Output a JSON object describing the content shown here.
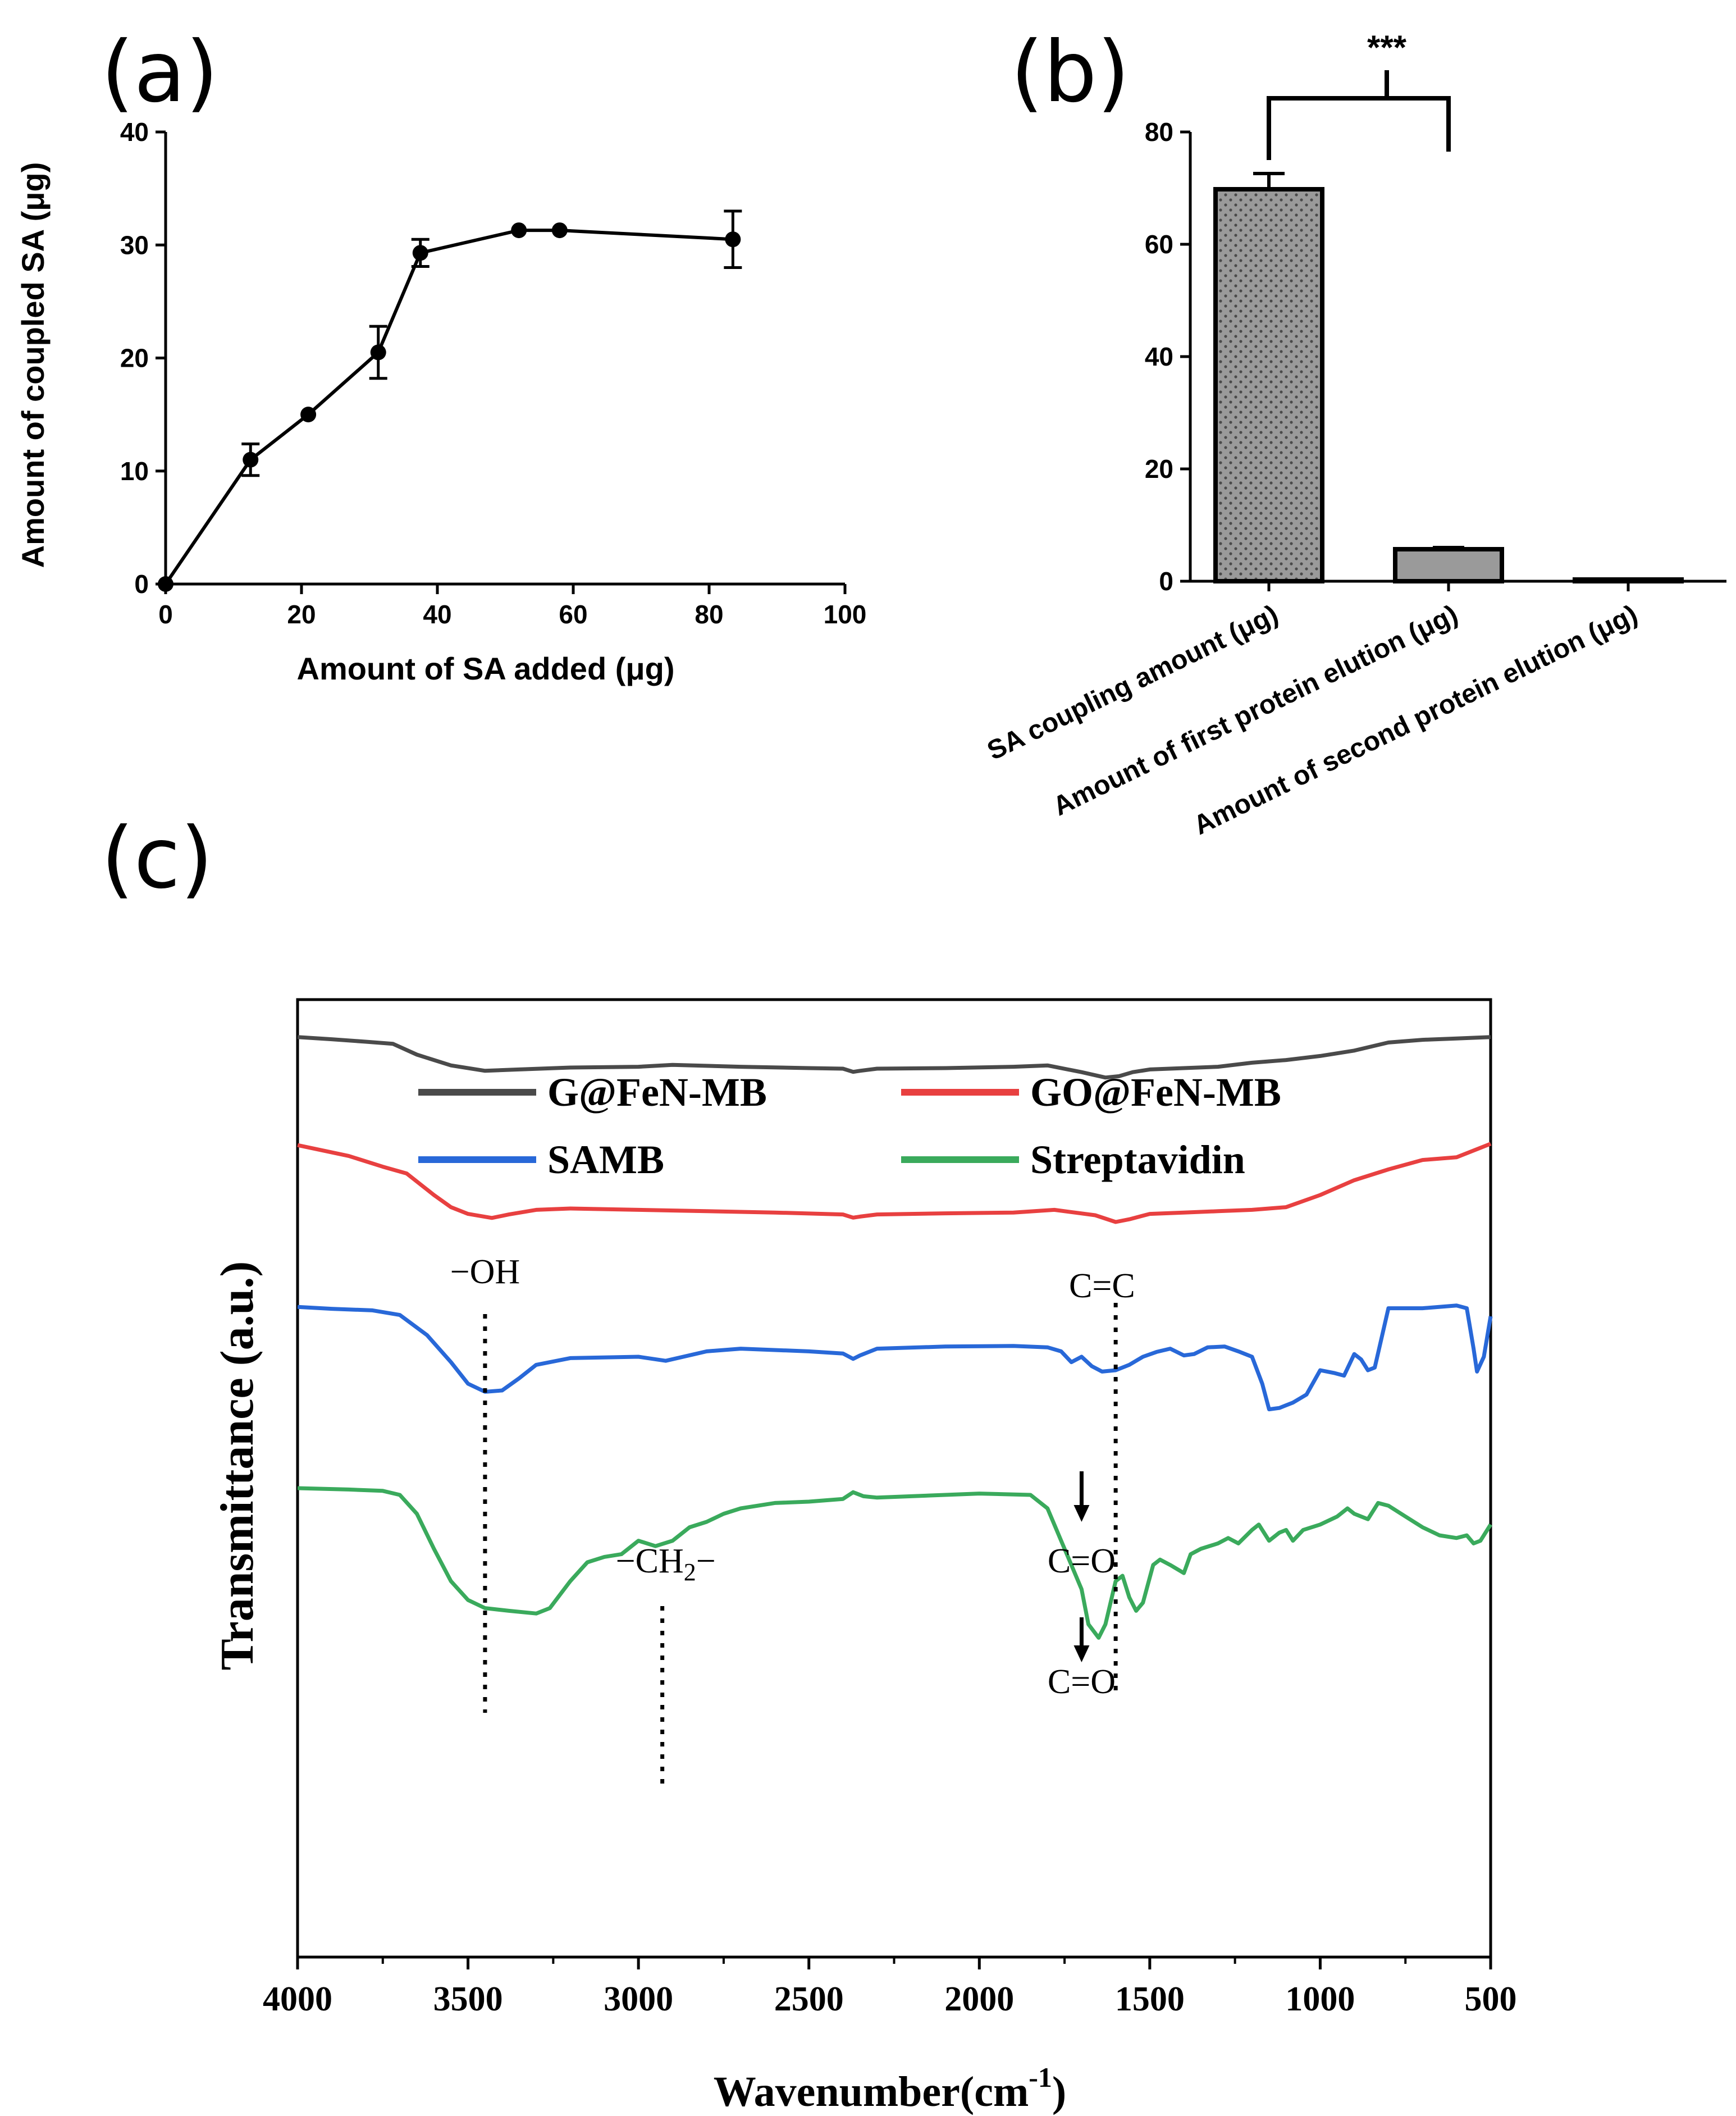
{
  "panels": {
    "a": "(a)",
    "b": "(b)",
    "c": "(c)"
  },
  "chart_data": [
    {
      "id": "a",
      "type": "line",
      "xlabel": "Amount of SA added (μg)",
      "ylabel": "Amount of coupled SA (μg)",
      "xlim": [
        0,
        100
      ],
      "ylim": [
        0,
        40
      ],
      "xticks": [
        "0",
        "20",
        "40",
        "60",
        "80",
        "100"
      ],
      "yticks": [
        "0",
        "10",
        "20",
        "30",
        "40"
      ],
      "x": [
        0,
        12.5,
        21,
        31.3,
        37.5,
        52,
        58,
        83.5
      ],
      "y": [
        0,
        11,
        15,
        20.5,
        29.3,
        31.3,
        31.3,
        30.5
      ],
      "err": [
        0,
        1.4,
        0,
        2.3,
        1.2,
        0,
        0,
        2.5
      ],
      "color": "#000000"
    },
    {
      "id": "b",
      "type": "bar",
      "categories": [
        "SA coupling amount (μg)",
        "Amount of first protein elution (μg)",
        "Amount of second protein elution (μg)"
      ],
      "values": [
        69.8,
        5.7,
        0.3
      ],
      "err": [
        2.8,
        0.3,
        0
      ],
      "ylim": [
        0,
        80
      ],
      "yticks": [
        "0",
        "20",
        "40",
        "60",
        "80"
      ],
      "significance": {
        "label": "***",
        "between": [
          0,
          1
        ]
      },
      "bar_color": "#9a9a9a"
    },
    {
      "id": "c",
      "type": "line",
      "xlabel": "Wavenumber(cm",
      "xlabel_sup": "-1",
      "xlabel_end": ")",
      "ylabel": "Transmittance (a.u.)",
      "xlim": [
        4000,
        500
      ],
      "xticks": [
        "4000",
        "3500",
        "3000",
        "2500",
        "2000",
        "1500",
        "1000",
        "500"
      ],
      "legend": {
        "position": "top"
      },
      "series": [
        {
          "name": "G@FeN-MB",
          "color": "#4a4a4a",
          "points": [
            [
              4000,
              0.965
            ],
            [
              3900,
              0.957
            ],
            [
              3800,
              0.948
            ],
            [
              3720,
              0.94
            ],
            [
              3650,
              0.9
            ],
            [
              3550,
              0.86
            ],
            [
              3450,
              0.84
            ],
            [
              3350,
              0.845
            ],
            [
              3200,
              0.852
            ],
            [
              3000,
              0.855
            ],
            [
              2900,
              0.862
            ],
            [
              2700,
              0.855
            ],
            [
              2500,
              0.85
            ],
            [
              2400,
              0.848
            ],
            [
              2370,
              0.836
            ],
            [
              2350,
              0.84
            ],
            [
              2300,
              0.848
            ],
            [
              2100,
              0.85
            ],
            [
              1900,
              0.855
            ],
            [
              1800,
              0.86
            ],
            [
              1700,
              0.835
            ],
            [
              1630,
              0.815
            ],
            [
              1590,
              0.82
            ],
            [
              1550,
              0.835
            ],
            [
              1500,
              0.845
            ],
            [
              1400,
              0.85
            ],
            [
              1300,
              0.855
            ],
            [
              1200,
              0.87
            ],
            [
              1100,
              0.88
            ],
            [
              1000,
              0.895
            ],
            [
              900,
              0.915
            ],
            [
              800,
              0.945
            ],
            [
              700,
              0.955
            ],
            [
              600,
              0.96
            ],
            [
              500,
              0.965
            ]
          ]
        },
        {
          "name": "GO@FeN-MB",
          "color": "#e84040",
          "points": [
            [
              4000,
              0.835
            ],
            [
              3850,
              0.795
            ],
            [
              3750,
              0.755
            ],
            [
              3680,
              0.73
            ],
            [
              3600,
              0.65
            ],
            [
              3550,
              0.605
            ],
            [
              3500,
              0.58
            ],
            [
              3430,
              0.565
            ],
            [
              3380,
              0.578
            ],
            [
              3300,
              0.595
            ],
            [
              3200,
              0.6
            ],
            [
              3000,
              0.595
            ],
            [
              2800,
              0.59
            ],
            [
              2600,
              0.585
            ],
            [
              2400,
              0.578
            ],
            [
              2370,
              0.566
            ],
            [
              2350,
              0.57
            ],
            [
              2300,
              0.578
            ],
            [
              2100,
              0.582
            ],
            [
              1900,
              0.585
            ],
            [
              1780,
              0.595
            ],
            [
              1720,
              0.585
            ],
            [
              1660,
              0.575
            ],
            [
              1600,
              0.55
            ],
            [
              1560,
              0.56
            ],
            [
              1500,
              0.58
            ],
            [
              1400,
              0.585
            ],
            [
              1300,
              0.59
            ],
            [
              1200,
              0.595
            ],
            [
              1100,
              0.605
            ],
            [
              1000,
              0.65
            ],
            [
              900,
              0.705
            ],
            [
              800,
              0.745
            ],
            [
              700,
              0.78
            ],
            [
              600,
              0.79
            ],
            [
              500,
              0.84
            ]
          ]
        },
        {
          "name": "SAMB",
          "color": "#2868d8",
          "points": [
            [
              4000,
              0.485
            ],
            [
              3900,
              0.478
            ],
            [
              3780,
              0.472
            ],
            [
              3700,
              0.455
            ],
            [
              3620,
              0.38
            ],
            [
              3550,
              0.28
            ],
            [
              3500,
              0.2
            ],
            [
              3450,
              0.17
            ],
            [
              3400,
              0.175
            ],
            [
              3350,
              0.22
            ],
            [
              3300,
              0.27
            ],
            [
              3200,
              0.295
            ],
            [
              3000,
              0.3
            ],
            [
              2920,
              0.285
            ],
            [
              2800,
              0.32
            ],
            [
              2700,
              0.33
            ],
            [
              2500,
              0.32
            ],
            [
              2400,
              0.312
            ],
            [
              2370,
              0.292
            ],
            [
              2350,
              0.305
            ],
            [
              2300,
              0.33
            ],
            [
              2100,
              0.338
            ],
            [
              1900,
              0.34
            ],
            [
              1800,
              0.335
            ],
            [
              1760,
              0.32
            ],
            [
              1730,
              0.28
            ],
            [
              1700,
              0.3
            ],
            [
              1670,
              0.265
            ],
            [
              1640,
              0.245
            ],
            [
              1600,
              0.25
            ],
            [
              1560,
              0.27
            ],
            [
              1520,
              0.3
            ],
            [
              1480,
              0.318
            ],
            [
              1440,
              0.33
            ],
            [
              1400,
              0.305
            ],
            [
              1370,
              0.31
            ],
            [
              1330,
              0.335
            ],
            [
              1280,
              0.338
            ],
            [
              1240,
              0.32
            ],
            [
              1200,
              0.3
            ],
            [
              1170,
              0.2
            ],
            [
              1150,
              0.105
            ],
            [
              1120,
              0.11
            ],
            [
              1080,
              0.13
            ],
            [
              1040,
              0.16
            ],
            [
              1000,
              0.25
            ],
            [
              960,
              0.24
            ],
            [
              930,
              0.23
            ],
            [
              900,
              0.31
            ],
            [
              880,
              0.29
            ],
            [
              860,
              0.25
            ],
            [
              840,
              0.26
            ],
            [
              800,
              0.48
            ],
            [
              700,
              0.48
            ],
            [
              600,
              0.49
            ],
            [
              570,
              0.48
            ],
            [
              550,
              0.33
            ],
            [
              540,
              0.245
            ],
            [
              520,
              0.3
            ],
            [
              500,
              0.45
            ]
          ]
        },
        {
          "name": "Streptavidin",
          "color": "#3aaa5c",
          "points": [
            [
              4000,
              0.125
            ],
            [
              3850,
              0.12
            ],
            [
              3750,
              0.115
            ],
            [
              3700,
              0.1
            ],
            [
              3650,
              0.03
            ],
            [
              3600,
              -0.1
            ],
            [
              3550,
              -0.22
            ],
            [
              3500,
              -0.29
            ],
            [
              3450,
              -0.32
            ],
            [
              3380,
              -0.33
            ],
            [
              3300,
              -0.34
            ],
            [
              3260,
              -0.32
            ],
            [
              3200,
              -0.22
            ],
            [
              3150,
              -0.15
            ],
            [
              3100,
              -0.13
            ],
            [
              3050,
              -0.12
            ],
            [
              3000,
              -0.07
            ],
            [
              2950,
              -0.09
            ],
            [
              2900,
              -0.07
            ],
            [
              2850,
              -0.02
            ],
            [
              2800,
              0
            ],
            [
              2750,
              0.03
            ],
            [
              2700,
              0.05
            ],
            [
              2600,
              0.07
            ],
            [
              2500,
              0.075
            ],
            [
              2400,
              0.085
            ],
            [
              2370,
              0.11
            ],
            [
              2340,
              0.095
            ],
            [
              2300,
              0.09
            ],
            [
              2200,
              0.095
            ],
            [
              2000,
              0.105
            ],
            [
              1850,
              0.1
            ],
            [
              1800,
              0.05
            ],
            [
              1750,
              -0.1
            ],
            [
              1700,
              -0.25
            ],
            [
              1680,
              -0.38
            ],
            [
              1650,
              -0.43
            ],
            [
              1630,
              -0.38
            ],
            [
              1600,
              -0.22
            ],
            [
              1580,
              -0.2
            ],
            [
              1560,
              -0.28
            ],
            [
              1540,
              -0.33
            ],
            [
              1520,
              -0.3
            ],
            [
              1490,
              -0.16
            ],
            [
              1470,
              -0.14
            ],
            [
              1440,
              -0.16
            ],
            [
              1400,
              -0.19
            ],
            [
              1380,
              -0.12
            ],
            [
              1350,
              -0.1
            ],
            [
              1300,
              -0.08
            ],
            [
              1270,
              -0.06
            ],
            [
              1240,
              -0.08
            ],
            [
              1200,
              -0.03
            ],
            [
              1180,
              -0.01
            ],
            [
              1150,
              -0.07
            ],
            [
              1120,
              -0.04
            ],
            [
              1100,
              -0.03
            ],
            [
              1080,
              -0.07
            ],
            [
              1050,
              -0.03
            ],
            [
              1000,
              -0.01
            ],
            [
              950,
              0.02
            ],
            [
              920,
              0.05
            ],
            [
              900,
              0.03
            ],
            [
              860,
              0.01
            ],
            [
              830,
              0.07
            ],
            [
              800,
              0.06
            ],
            [
              750,
              0.02
            ],
            [
              700,
              -0.02
            ],
            [
              650,
              -0.05
            ],
            [
              600,
              -0.06
            ],
            [
              570,
              -0.05
            ],
            [
              550,
              -0.08
            ],
            [
              530,
              -0.07
            ],
            [
              500,
              -0.01
            ]
          ]
        }
      ],
      "annotations": [
        {
          "text": "−OH",
          "x": 3450
        },
        {
          "text": "C=C",
          "x": 1600
        },
        {
          "text": "C=O",
          "x": 1700
        },
        {
          "text": "C=O",
          "x": 1700
        },
        {
          "text": "−CH",
          "sub": "2",
          "end": "−",
          "x": 2930
        }
      ]
    }
  ]
}
